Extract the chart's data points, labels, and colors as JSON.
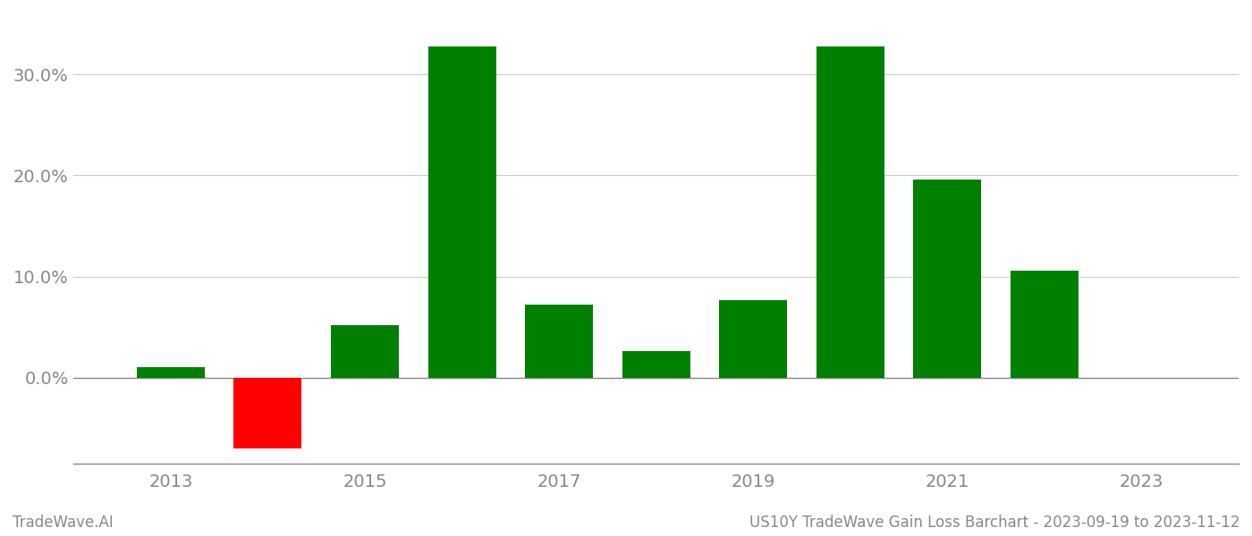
{
  "years": [
    2013,
    2014,
    2015,
    2016,
    2017,
    2018,
    2019,
    2020,
    2021,
    2022
  ],
  "values": [
    0.01,
    -0.07,
    0.052,
    0.328,
    0.072,
    0.026,
    0.077,
    0.328,
    0.196,
    0.106
  ],
  "bar_colors": [
    "#008000",
    "#ff0000",
    "#008000",
    "#008000",
    "#008000",
    "#008000",
    "#008000",
    "#008000",
    "#008000",
    "#008000"
  ],
  "positive_color": "#008000",
  "negative_color": "#ff0000",
  "ylim_min": -0.085,
  "ylim_max": 0.355,
  "yticks": [
    0.0,
    0.1,
    0.2,
    0.3
  ],
  "grid_color": "#cccccc",
  "axis_color": "#888888",
  "tick_label_color": "#888888",
  "background_color": "#ffffff",
  "footer_left": "TradeWave.AI",
  "footer_right": "US10Y TradeWave Gain Loss Barchart - 2023-09-19 to 2023-11-12",
  "bar_width": 0.7,
  "xlim_min": 2012.0,
  "xlim_max": 2024.0,
  "xticks": [
    2013,
    2015,
    2017,
    2019,
    2021,
    2023
  ],
  "tick_fontsize": 14,
  "footer_fontsize": 12
}
